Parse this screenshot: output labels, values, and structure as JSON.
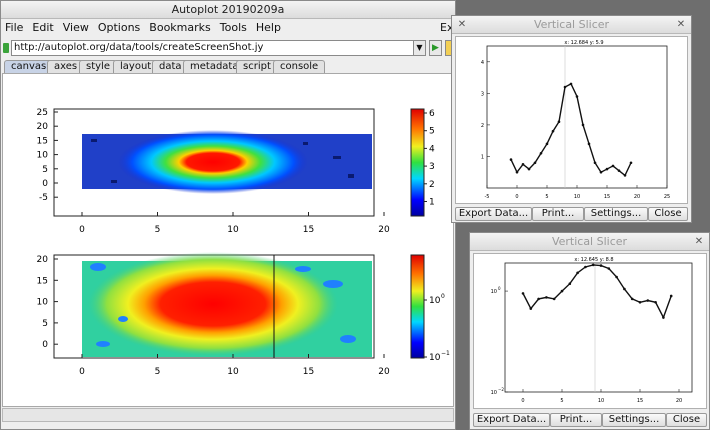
{
  "main_window": {
    "title": "Autoplot 20190209a",
    "menu": [
      "File",
      "Edit",
      "View",
      "Options",
      "Bookmarks",
      "Tools",
      "Help"
    ],
    "menu_right": "Exp",
    "url": "http://autoplot.org/data/tools/createScreenShot.jy",
    "tabs": [
      "canvas",
      "axes",
      "style",
      "layout",
      "data",
      "metadata",
      "script",
      "console"
    ],
    "active_tab": "canvas",
    "top_plot": {
      "y_ticks": [
        "25",
        "20",
        "15",
        "10",
        "5",
        "0",
        "-5"
      ],
      "x_ticks": [
        "0",
        "5",
        "10",
        "15",
        "20"
      ],
      "colorbar_ticks": [
        "6",
        "5",
        "4",
        "3",
        "2",
        "1"
      ]
    },
    "bottom_plot": {
      "y_ticks": [
        "20",
        "15",
        "10",
        "5",
        "0"
      ],
      "x_ticks": [
        "0",
        "5",
        "10",
        "15",
        "20"
      ],
      "colorbar_ticks": [
        "10",
        "10"
      ],
      "colorbar_exponents": [
        "0",
        "−1"
      ]
    }
  },
  "slicer1": {
    "title": "Vertical Slicer",
    "readout": "x: 12.684  y: 5.9",
    "x_ticks": [
      "-5",
      "0",
      "5",
      "10",
      "15",
      "20",
      "25"
    ],
    "y_ticks": [
      "4",
      "3",
      "2",
      "1"
    ],
    "buttons": [
      "Export Data...",
      "Print...",
      "Settings...",
      "Close"
    ]
  },
  "slicer2": {
    "title": "Vertical Slicer",
    "readout": "x: 12.645  y: 8.8",
    "x_ticks": [
      "0",
      "5",
      "10",
      "15",
      "20"
    ],
    "y_ticks": [
      "10",
      "10"
    ],
    "y_exponents": [
      "0",
      "−2"
    ],
    "buttons": [
      "Export Data...",
      "Print...",
      "Settings...",
      "Close"
    ]
  },
  "chart_data": [
    {
      "type": "line",
      "title": "",
      "x": [
        -1,
        0,
        1,
        2,
        3,
        4,
        5,
        6,
        7,
        8,
        9,
        10,
        11,
        12,
        13,
        14,
        15,
        16,
        17,
        18,
        19
      ],
      "y": [
        0.9,
        0.5,
        0.75,
        0.6,
        0.8,
        1.1,
        1.4,
        1.8,
        2.1,
        3.2,
        3.3,
        2.9,
        2.0,
        1.4,
        0.8,
        0.5,
        0.6,
        0.7,
        0.55,
        0.4,
        0.8
      ],
      "xlim": [
        -5,
        25
      ],
      "ylim": [
        0,
        4.5
      ]
    },
    {
      "type": "line",
      "title": "",
      "log_y": true,
      "x": [
        0,
        1,
        2,
        3,
        4,
        5,
        6,
        7,
        8,
        9,
        10,
        11,
        12,
        13,
        14,
        15,
        16,
        17,
        18,
        19
      ],
      "y": [
        0.9,
        0.45,
        0.7,
        0.75,
        0.7,
        1.0,
        1.4,
        2.3,
        3.0,
        3.3,
        3.2,
        2.8,
        1.9,
        1.1,
        0.7,
        0.6,
        0.65,
        0.6,
        0.3,
        0.8
      ],
      "ylim": [
        0.01,
        3.6
      ]
    }
  ]
}
